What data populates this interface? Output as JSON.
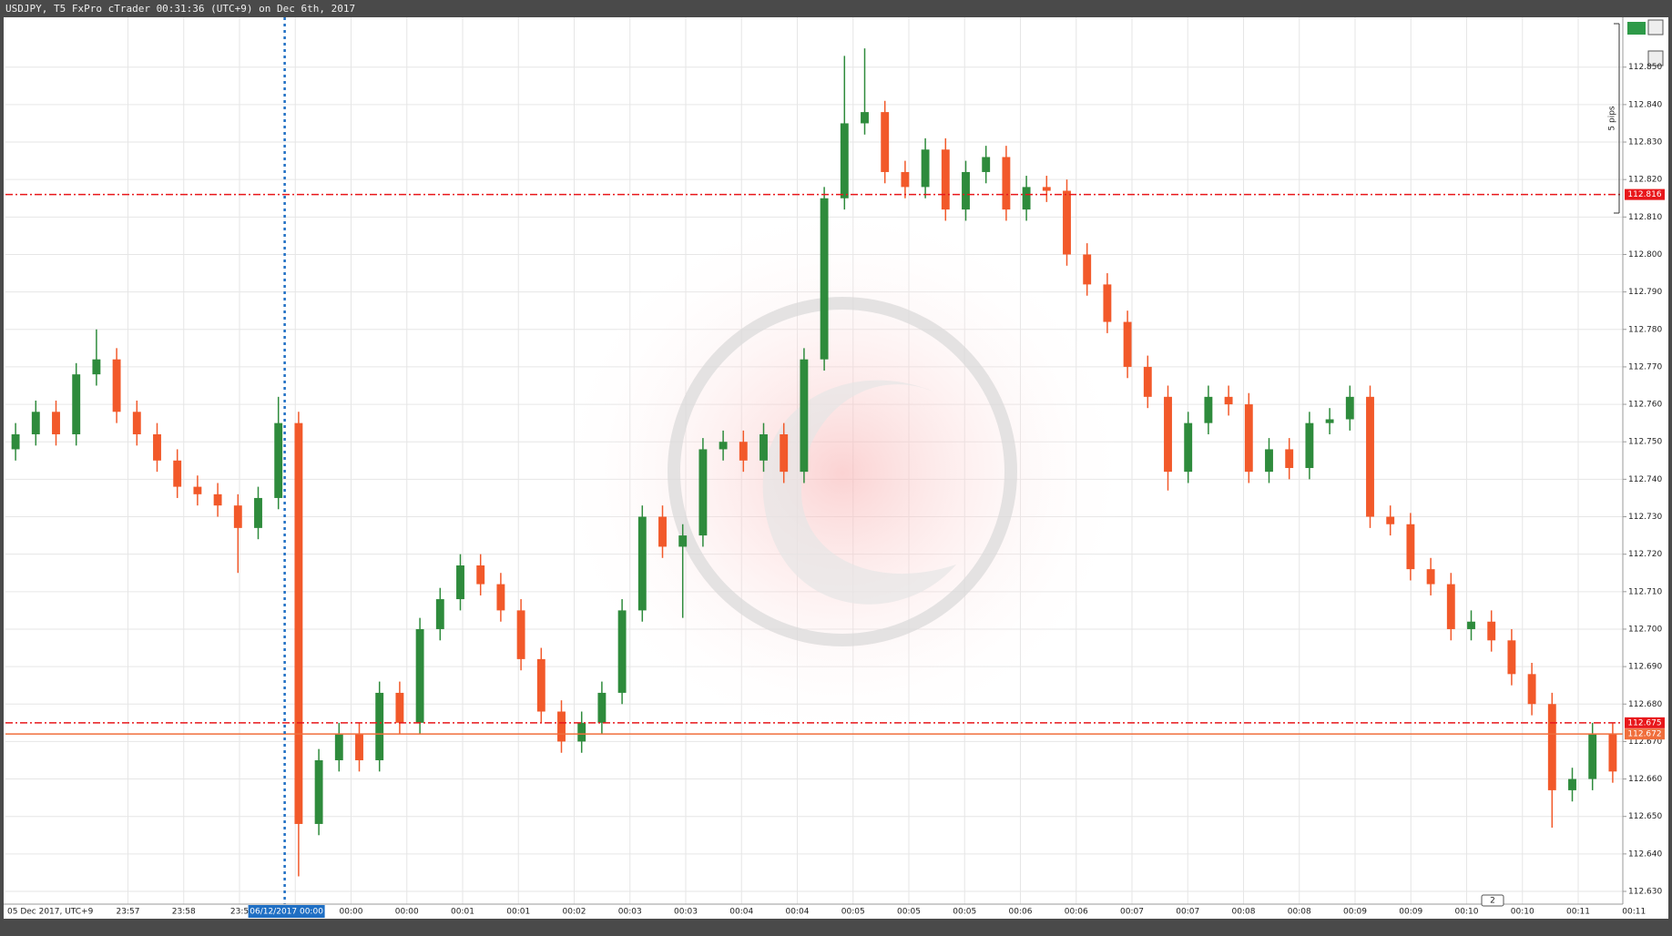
{
  "chart_data": {
    "type": "candlestick",
    "title": "USDJPY, T5 FxPro cTrader 00:31:36 (UTC+9) on Dec 6th, 2017",
    "ylim": [
      112.6266,
      112.8633
    ],
    "yticks": [
      {
        "value": 112.63,
        "label": "112.630"
      },
      {
        "value": 112.64,
        "label": "112.640"
      },
      {
        "value": 112.65,
        "label": "112.650"
      },
      {
        "value": 112.66,
        "label": "112.660"
      },
      {
        "value": 112.67,
        "label": "112.670"
      },
      {
        "value": 112.68,
        "label": "112.680"
      },
      {
        "value": 112.69,
        "label": "112.690"
      },
      {
        "value": 112.7,
        "label": "112.700"
      },
      {
        "value": 112.71,
        "label": "112.710"
      },
      {
        "value": 112.72,
        "label": "112.720"
      },
      {
        "value": 112.73,
        "label": "112.730"
      },
      {
        "value": 112.74,
        "label": "112.740"
      },
      {
        "value": 112.75,
        "label": "112.750"
      },
      {
        "value": 112.76,
        "label": "112.760"
      },
      {
        "value": 112.77,
        "label": "112.770"
      },
      {
        "value": 112.78,
        "label": "112.780"
      },
      {
        "value": 112.79,
        "label": "112.790"
      },
      {
        "value": 112.8,
        "label": "112.800"
      },
      {
        "value": 112.81,
        "label": "112.810"
      },
      {
        "value": 112.82,
        "label": "112.820"
      },
      {
        "value": 112.83,
        "label": "112.830"
      },
      {
        "value": 112.84,
        "label": "112.840"
      },
      {
        "value": 112.85,
        "label": "112.850"
      }
    ],
    "x_labels": [
      "05 Dec 2017, UTC+9",
      "23:57",
      "23:58",
      "23:5",
      null,
      "00:00",
      "00:00",
      "00:01",
      "00:01",
      "00:02",
      "00:03",
      "00:03",
      "00:04",
      "00:04",
      "00:05",
      "00:05",
      "00:05",
      "00:06",
      "00:06",
      "00:07",
      "00:07",
      "00:08",
      "00:08",
      "00:09",
      "00:09",
      "00:10",
      "00:10",
      "00:11",
      "00:11"
    ],
    "cursor_label": "06/12/2017 00:00",
    "grid": true,
    "up_color": "#2e8b3c",
    "down_color": "#f2592a",
    "open": [
      112.748,
      112.752,
      112.758,
      112.752,
      112.768,
      112.772,
      112.758,
      112.752,
      112.745,
      112.738,
      112.736,
      112.733,
      112.727,
      112.735,
      112.755,
      112.648,
      112.665,
      112.672,
      112.665,
      112.683,
      112.675,
      112.7,
      112.708,
      112.717,
      112.712,
      112.705,
      112.692,
      112.678,
      112.67,
      112.675,
      112.683,
      112.705,
      112.73,
      112.722,
      112.725,
      112.748,
      112.75,
      112.745,
      112.752,
      112.742,
      112.772,
      112.815,
      112.835,
      112.838,
      112.822,
      112.818,
      112.828,
      112.812,
      112.822,
      112.826,
      112.812,
      112.818,
      112.817,
      112.8,
      112.792,
      112.782,
      112.77,
      112.762,
      112.742,
      112.755,
      112.762,
      112.76,
      112.742,
      112.748,
      112.743,
      112.755,
      112.756,
      112.762,
      112.73,
      112.728,
      112.716,
      112.712,
      112.7,
      112.702,
      112.697,
      112.688,
      112.68,
      112.657,
      112.66,
      112.672
    ],
    "high": [
      112.755,
      112.761,
      112.761,
      112.771,
      112.78,
      112.775,
      112.761,
      112.755,
      112.748,
      112.741,
      112.739,
      112.736,
      112.738,
      112.762,
      112.758,
      112.668,
      112.675,
      112.675,
      112.686,
      112.686,
      112.703,
      112.711,
      112.72,
      112.72,
      112.715,
      112.708,
      112.695,
      112.681,
      112.678,
      112.686,
      112.708,
      112.733,
      112.733,
      112.728,
      112.751,
      112.753,
      112.753,
      112.755,
      112.755,
      112.775,
      112.818,
      112.853,
      112.855,
      112.841,
      112.825,
      112.831,
      112.831,
      112.825,
      112.829,
      112.829,
      112.821,
      112.821,
      112.82,
      112.803,
      112.795,
      112.785,
      112.773,
      112.765,
      112.758,
      112.765,
      112.765,
      112.763,
      112.751,
      112.751,
      112.758,
      112.759,
      112.765,
      112.765,
      112.733,
      112.731,
      112.719,
      112.715,
      112.705,
      112.705,
      112.7,
      112.691,
      112.683,
      112.663,
      112.675,
      112.675
    ],
    "low": [
      112.745,
      112.749,
      112.749,
      112.749,
      112.765,
      112.755,
      112.749,
      112.742,
      112.735,
      112.733,
      112.73,
      112.715,
      112.724,
      112.732,
      112.634,
      112.645,
      112.662,
      112.662,
      112.662,
      112.672,
      112.672,
      112.697,
      112.705,
      112.709,
      112.702,
      112.689,
      112.675,
      112.667,
      112.667,
      112.672,
      112.68,
      112.702,
      112.719,
      112.703,
      112.722,
      112.745,
      112.742,
      112.742,
      112.739,
      112.739,
      112.769,
      112.812,
      112.832,
      112.819,
      112.815,
      112.815,
      112.809,
      112.809,
      112.819,
      112.809,
      112.809,
      112.814,
      112.797,
      112.789,
      112.779,
      112.767,
      112.759,
      112.737,
      112.739,
      112.752,
      112.757,
      112.739,
      112.739,
      112.74,
      112.74,
      112.752,
      112.753,
      112.727,
      112.725,
      112.713,
      112.709,
      112.697,
      112.697,
      112.694,
      112.685,
      112.677,
      112.647,
      112.654,
      112.657,
      112.659
    ],
    "close": [
      112.752,
      112.758,
      112.752,
      112.768,
      112.772,
      112.758,
      112.752,
      112.745,
      112.738,
      112.736,
      112.733,
      112.727,
      112.735,
      112.755,
      112.648,
      112.665,
      112.672,
      112.665,
      112.683,
      112.675,
      112.7,
      112.708,
      112.717,
      112.712,
      112.705,
      112.692,
      112.678,
      112.67,
      112.675,
      112.683,
      112.705,
      112.73,
      112.722,
      112.725,
      112.748,
      112.75,
      112.745,
      112.752,
      112.742,
      112.772,
      112.815,
      112.835,
      112.838,
      112.822,
      112.818,
      112.828,
      112.812,
      112.822,
      112.826,
      112.812,
      112.818,
      112.817,
      112.8,
      112.792,
      112.782,
      112.77,
      112.762,
      112.742,
      112.755,
      112.762,
      112.76,
      112.742,
      112.748,
      112.743,
      112.755,
      112.756,
      112.762,
      112.73,
      112.728,
      112.716,
      112.712,
      112.7,
      112.702,
      112.697,
      112.688,
      112.68,
      112.657,
      112.66,
      112.672,
      112.662
    ],
    "lines": [
      {
        "value": 112.816,
        "label": "112.816",
        "style": "dash-dot",
        "color": "#e8171b"
      },
      {
        "value": 112.675,
        "label": "112.675",
        "style": "dash-dot",
        "color": "#e8171b"
      },
      {
        "value": 112.672,
        "label": "112.672",
        "style": "solid",
        "color": "#f06e3c"
      }
    ],
    "ruler_label": "5 pips",
    "marker_label": "2"
  }
}
